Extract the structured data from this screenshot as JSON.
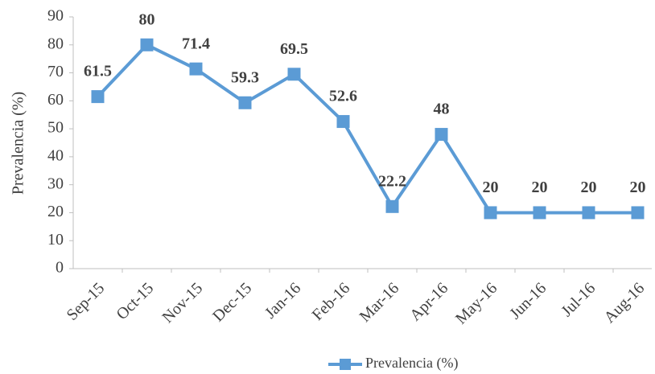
{
  "chart_data": {
    "type": "line",
    "y_label": "Prevalencia  (%)",
    "categories": [
      "Sep-15",
      "Oct-15",
      "Nov-15",
      "Dec-15",
      "Jan-16",
      "Feb-16",
      "Mar-16",
      "Apr-16",
      "May-16",
      "Jun-16",
      "Jul-16",
      "Aug-16"
    ],
    "series": [
      {
        "name": "Prevalencia (%)",
        "color": "#5b9bd5",
        "values": [
          61.5,
          80,
          71.4,
          59.3,
          69.5,
          52.6,
          22.2,
          48,
          20,
          20,
          20,
          20
        ]
      }
    ],
    "ylim": [
      0,
      90
    ],
    "yticks": [
      0,
      10,
      20,
      30,
      40,
      50,
      60,
      70,
      80,
      90
    ],
    "grid": false,
    "legend": "bottom"
  }
}
